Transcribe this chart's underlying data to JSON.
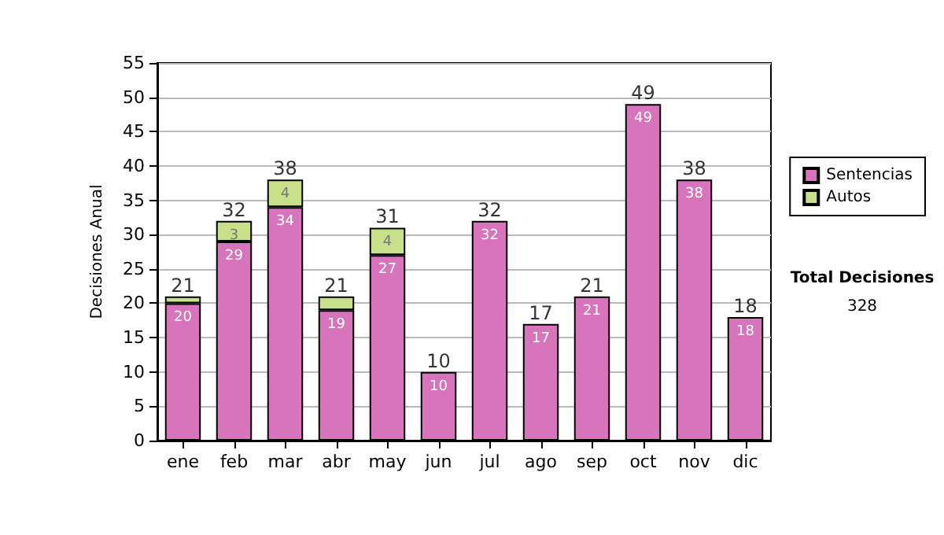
{
  "chart_data": {
    "type": "bar",
    "stacked": true,
    "ylabel": "Decisiones Anual",
    "categories": [
      "ene",
      "feb",
      "mar",
      "abr",
      "may",
      "jun",
      "jul",
      "ago",
      "sep",
      "oct",
      "nov",
      "dic"
    ],
    "series": [
      {
        "name": "Sentencias",
        "color": "#d874bb",
        "values": [
          20,
          29,
          34,
          19,
          27,
          10,
          32,
          17,
          21,
          49,
          38,
          18
        ],
        "value_labels": [
          "20",
          "29",
          "34",
          "19",
          "27",
          "10",
          "32",
          "17",
          "21",
          "49",
          "38",
          "18"
        ]
      },
      {
        "name": "Autos",
        "color": "#c8e08a",
        "values": [
          1,
          3,
          4,
          2,
          4,
          null,
          null,
          null,
          null,
          null,
          null,
          null
        ],
        "value_labels": [
          null,
          "3",
          "4",
          null,
          "4",
          null,
          null,
          null,
          null,
          null,
          null,
          null
        ]
      }
    ],
    "totals": [
      "21",
      "32",
      "38",
      "21",
      "31",
      "10",
      "32",
      "17",
      "21",
      "49",
      "38",
      "18"
    ],
    "ylim": [
      0,
      55
    ],
    "yticks": [
      0,
      5,
      10,
      15,
      20,
      25,
      30,
      35,
      40,
      45,
      50,
      55
    ],
    "grid": "y",
    "legend": "right",
    "annotations": [
      "Total Decisiones",
      "328"
    ]
  }
}
